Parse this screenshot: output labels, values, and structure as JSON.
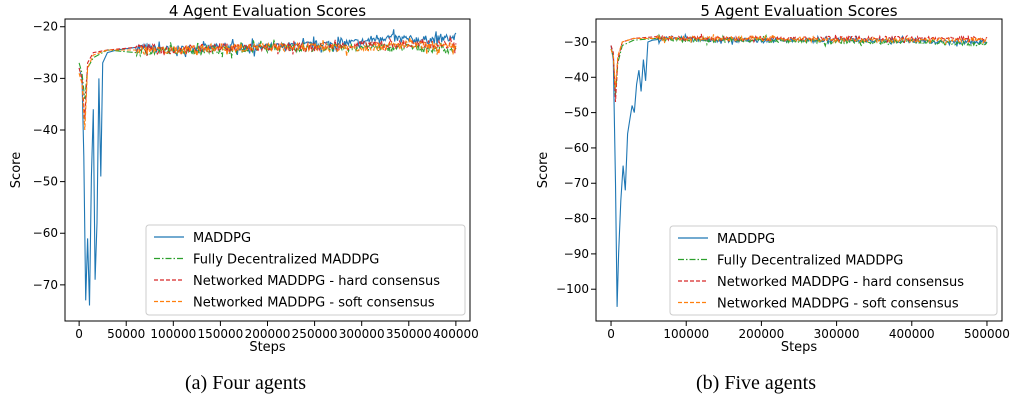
{
  "chart_data": [
    {
      "type": "line",
      "title": "4 Agent Evaluation Scores",
      "xlabel": "Steps",
      "ylabel": "Score",
      "xlim": [
        -15000,
        415000
      ],
      "ylim": [
        -77,
        -18.5
      ],
      "xticks": [
        0,
        50000,
        100000,
        150000,
        200000,
        250000,
        300000,
        350000,
        400000
      ],
      "xtick_labels": [
        "0",
        "50000",
        "100000",
        "150000",
        "200000",
        "250000",
        "300000",
        "350000",
        "400000"
      ],
      "yticks": [
        -70,
        -60,
        -50,
        -40,
        -30,
        -20
      ],
      "ytick_labels": [
        "−70",
        "−60",
        "−50",
        "−40",
        "−30",
        "−20"
      ],
      "legend_position": "lower-right",
      "grid": false,
      "series": [
        {
          "name": "MADDPG",
          "color": "#1f77b4",
          "dash": "solid",
          "points": [
            [
              0,
              -28
            ],
            [
              3000,
              -30
            ],
            [
              5000,
              -45
            ],
            [
              7000,
              -73
            ],
            [
              9000,
              -61
            ],
            [
              11000,
              -74
            ],
            [
              13000,
              -49
            ],
            [
              15000,
              -36
            ],
            [
              17000,
              -69
            ],
            [
              19000,
              -58
            ],
            [
              21000,
              -30
            ],
            [
              23000,
              -49
            ],
            [
              25000,
              -27
            ],
            [
              30000,
              -25
            ],
            [
              40000,
              -24.5
            ],
            [
              60000,
              -24
            ],
            [
              100000,
              -24.5
            ],
            [
              150000,
              -24
            ],
            [
              200000,
              -24
            ],
            [
              250000,
              -23.5
            ],
            [
              300000,
              -23
            ],
            [
              320000,
              -22
            ],
            [
              350000,
              -22.5
            ],
            [
              380000,
              -22.5
            ],
            [
              400000,
              -22
            ]
          ]
        },
        {
          "name": "Fully Decentralized MADDPG",
          "color": "#2ca02c",
          "dash": "dashdot",
          "points": [
            [
              0,
              -27
            ],
            [
              3000,
              -29
            ],
            [
              6000,
              -34
            ],
            [
              9000,
              -28
            ],
            [
              15000,
              -26
            ],
            [
              30000,
              -24.5
            ],
            [
              60000,
              -25
            ],
            [
              100000,
              -24.5
            ],
            [
              150000,
              -24.5
            ],
            [
              200000,
              -24
            ],
            [
              250000,
              -24
            ],
            [
              300000,
              -24
            ],
            [
              350000,
              -24
            ],
            [
              400000,
              -24.5
            ]
          ]
        },
        {
          "name": "Networked MADDPG - hard consensus",
          "color": "#d62728",
          "dash": "dashed",
          "points": [
            [
              0,
              -28
            ],
            [
              3000,
              -30
            ],
            [
              6000,
              -38
            ],
            [
              9000,
              -27
            ],
            [
              15000,
              -25
            ],
            [
              30000,
              -24.5
            ],
            [
              60000,
              -24
            ],
            [
              100000,
              -24.5
            ],
            [
              150000,
              -24
            ],
            [
              200000,
              -24
            ],
            [
              250000,
              -24
            ],
            [
              300000,
              -23.5
            ],
            [
              350000,
              -23.5
            ],
            [
              400000,
              -23.5
            ]
          ]
        },
        {
          "name": "Networked MADDPG - soft consensus",
          "color": "#ff7f0e",
          "dash": "dashed",
          "points": [
            [
              0,
              -29
            ],
            [
              3000,
              -31
            ],
            [
              6000,
              -40
            ],
            [
              9000,
              -28
            ],
            [
              15000,
              -25.5
            ],
            [
              30000,
              -24.5
            ],
            [
              60000,
              -24.5
            ],
            [
              100000,
              -24.5
            ],
            [
              150000,
              -24
            ],
            [
              200000,
              -24
            ],
            [
              250000,
              -24
            ],
            [
              300000,
              -24
            ],
            [
              350000,
              -23.5
            ],
            [
              400000,
              -24
            ]
          ]
        }
      ],
      "caption": "(a) Four agents"
    },
    {
      "type": "line",
      "title": "5 Agent Evaluation Scores",
      "xlabel": "Steps",
      "ylabel": "Score",
      "xlim": [
        -20000,
        520000
      ],
      "ylim": [
        -109,
        -23.5
      ],
      "xticks": [
        0,
        100000,
        200000,
        300000,
        400000,
        500000
      ],
      "xtick_labels": [
        "0",
        "100000",
        "200000",
        "300000",
        "400000",
        "500000"
      ],
      "yticks": [
        -100,
        -90,
        -80,
        -70,
        -60,
        -50,
        -40,
        -30
      ],
      "ytick_labels": [
        "−100",
        "−90",
        "−80",
        "−70",
        "−60",
        "−50",
        "−40",
        "−30"
      ],
      "legend_position": "lower-right",
      "grid": false,
      "series": [
        {
          "name": "MADDPG",
          "color": "#1f77b4",
          "dash": "solid",
          "points": [
            [
              0,
              -31
            ],
            [
              3000,
              -35
            ],
            [
              6000,
              -70
            ],
            [
              8000,
              -105
            ],
            [
              10000,
              -90
            ],
            [
              13000,
              -75
            ],
            [
              16000,
              -65
            ],
            [
              19000,
              -72
            ],
            [
              22000,
              -56
            ],
            [
              25000,
              -52
            ],
            [
              28000,
              -48
            ],
            [
              31000,
              -50
            ],
            [
              34000,
              -42
            ],
            [
              37000,
              -38
            ],
            [
              40000,
              -44
            ],
            [
              43000,
              -35
            ],
            [
              46000,
              -41
            ],
            [
              49000,
              -30
            ],
            [
              55000,
              -29.5
            ],
            [
              80000,
              -29
            ],
            [
              150000,
              -29.5
            ],
            [
              250000,
              -29.5
            ],
            [
              350000,
              -29.5
            ],
            [
              450000,
              -30
            ],
            [
              500000,
              -30
            ]
          ]
        },
        {
          "name": "Fully Decentralized MADDPG",
          "color": "#2ca02c",
          "dash": "dashdot",
          "points": [
            [
              0,
              -32
            ],
            [
              3000,
              -34
            ],
            [
              6000,
              -45
            ],
            [
              9000,
              -36
            ],
            [
              15000,
              -31
            ],
            [
              30000,
              -29.5
            ],
            [
              60000,
              -29
            ],
            [
              100000,
              -29.5
            ],
            [
              200000,
              -29.5
            ],
            [
              300000,
              -30
            ],
            [
              400000,
              -30
            ],
            [
              500000,
              -30.5
            ]
          ]
        },
        {
          "name": "Networked MADDPG - hard consensus",
          "color": "#d62728",
          "dash": "dashed",
          "points": [
            [
              0,
              -31
            ],
            [
              3000,
              -33
            ],
            [
              6000,
              -47
            ],
            [
              9000,
              -35
            ],
            [
              15000,
              -30
            ],
            [
              30000,
              -29
            ],
            [
              60000,
              -28.5
            ],
            [
              100000,
              -29
            ],
            [
              200000,
              -29
            ],
            [
              300000,
              -29
            ],
            [
              400000,
              -29
            ],
            [
              500000,
              -29
            ]
          ]
        },
        {
          "name": "Networked MADDPG - soft consensus",
          "color": "#ff7f0e",
          "dash": "dashed",
          "points": [
            [
              0,
              -32
            ],
            [
              3000,
              -34
            ],
            [
              6000,
              -43
            ],
            [
              9000,
              -34
            ],
            [
              15000,
              -30
            ],
            [
              30000,
              -29
            ],
            [
              60000,
              -29
            ],
            [
              100000,
              -29
            ],
            [
              200000,
              -29
            ],
            [
              300000,
              -29.5
            ],
            [
              400000,
              -29.5
            ],
            [
              500000,
              -29.5
            ]
          ]
        }
      ],
      "caption": "(b) Five agents"
    }
  ]
}
